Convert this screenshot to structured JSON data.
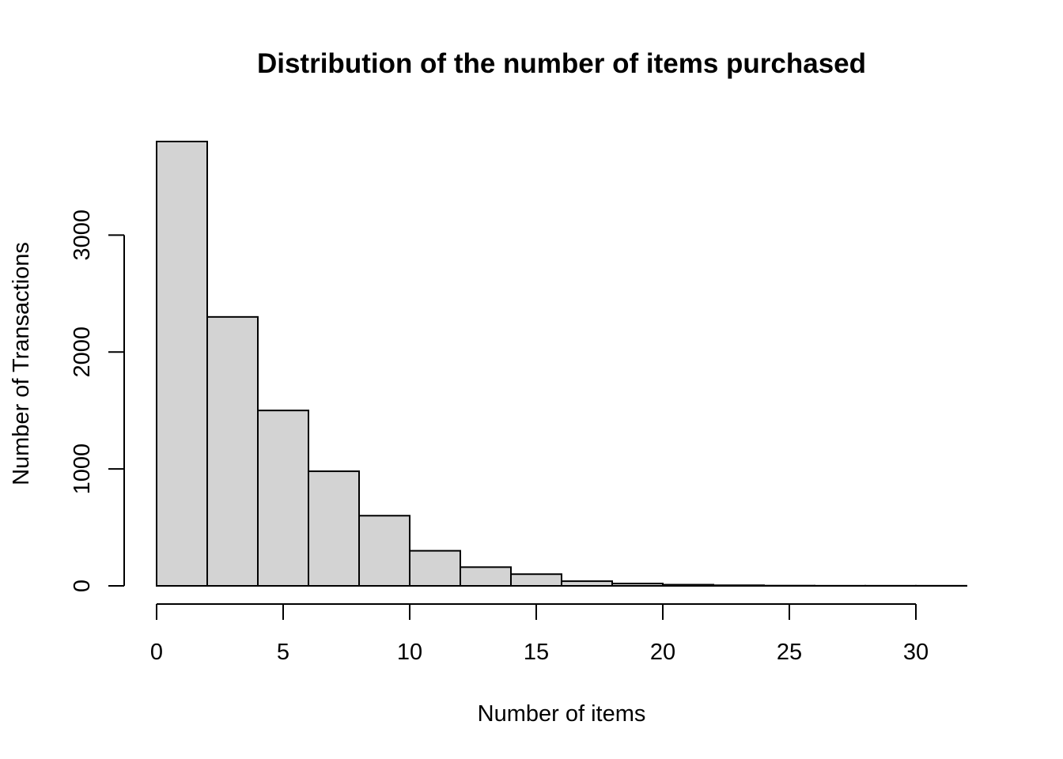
{
  "chart_data": {
    "type": "bar",
    "subtype": "histogram",
    "title": "Distribution of the number of items purchased",
    "xlabel": "Number of items",
    "ylabel": "Number of Transactions",
    "bin_edges": [
      0,
      2,
      4,
      6,
      8,
      10,
      12,
      14,
      16,
      18,
      20,
      22,
      24,
      26,
      28,
      30,
      32
    ],
    "values": [
      3800,
      2300,
      1500,
      980,
      600,
      300,
      160,
      100,
      40,
      20,
      10,
      5,
      2,
      1,
      1,
      1
    ],
    "xlim": [
      0,
      32
    ],
    "ylim": [
      0,
      3800
    ],
    "x_ticks": [
      0,
      5,
      10,
      15,
      20,
      25,
      30
    ],
    "y_ticks": [
      0,
      1000,
      2000,
      3000
    ],
    "grid": false,
    "bar_fill": "#d3d3d3",
    "bar_stroke": "#000000"
  }
}
